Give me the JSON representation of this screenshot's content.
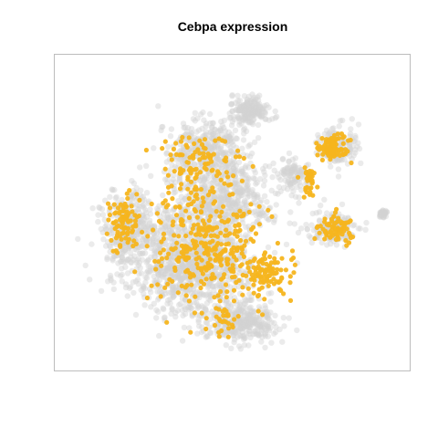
{
  "chart_data": {
    "type": "scatter",
    "title": "Cebpa expression",
    "xlabel": "",
    "ylabel": "",
    "axes_visible": false,
    "grid": false,
    "legend": "none",
    "series": [
      {
        "role": "background",
        "color": "#d3d3d3",
        "point_count": 3200,
        "clusters": [
          {
            "cx": 0.37,
            "cy": 0.66,
            "sx": 0.17,
            "sy": 0.16,
            "weight": 0.35
          },
          {
            "cx": 0.52,
            "cy": 0.86,
            "sx": 0.11,
            "sy": 0.06,
            "weight": 0.1
          },
          {
            "cx": 0.18,
            "cy": 0.55,
            "sx": 0.07,
            "sy": 0.11,
            "weight": 0.09
          },
          {
            "cx": 0.47,
            "cy": 0.45,
            "sx": 0.15,
            "sy": 0.11,
            "weight": 0.16
          },
          {
            "cx": 0.42,
            "cy": 0.28,
            "sx": 0.11,
            "sy": 0.09,
            "weight": 0.1
          },
          {
            "cx": 0.55,
            "cy": 0.16,
            "sx": 0.05,
            "sy": 0.04,
            "weight": 0.06
          },
          {
            "cx": 0.8,
            "cy": 0.55,
            "sx": 0.07,
            "sy": 0.05,
            "weight": 0.05
          },
          {
            "cx": 0.81,
            "cy": 0.28,
            "sx": 0.05,
            "sy": 0.06,
            "weight": 0.05
          },
          {
            "cx": 0.95,
            "cy": 0.5,
            "sx": 0.01,
            "sy": 0.01,
            "weight": 0.01
          },
          {
            "cx": 0.68,
            "cy": 0.37,
            "sx": 0.04,
            "sy": 0.05,
            "weight": 0.03
          }
        ]
      },
      {
        "role": "expressing",
        "color": "#f5b51f",
        "point_count": 820,
        "clusters": [
          {
            "cx": 0.42,
            "cy": 0.6,
            "sx": 0.17,
            "sy": 0.17,
            "weight": 0.44
          },
          {
            "cx": 0.6,
            "cy": 0.7,
            "sx": 0.07,
            "sy": 0.07,
            "weight": 0.12
          },
          {
            "cx": 0.17,
            "cy": 0.53,
            "sx": 0.05,
            "sy": 0.08,
            "weight": 0.09
          },
          {
            "cx": 0.4,
            "cy": 0.34,
            "sx": 0.1,
            "sy": 0.1,
            "weight": 0.11
          },
          {
            "cx": 0.8,
            "cy": 0.28,
            "sx": 0.04,
            "sy": 0.04,
            "weight": 0.1
          },
          {
            "cx": 0.8,
            "cy": 0.55,
            "sx": 0.05,
            "sy": 0.04,
            "weight": 0.07
          },
          {
            "cx": 0.47,
            "cy": 0.86,
            "sx": 0.04,
            "sy": 0.04,
            "weight": 0.03
          },
          {
            "cx": 0.73,
            "cy": 0.38,
            "sx": 0.02,
            "sy": 0.05,
            "weight": 0.04
          }
        ]
      }
    ]
  }
}
